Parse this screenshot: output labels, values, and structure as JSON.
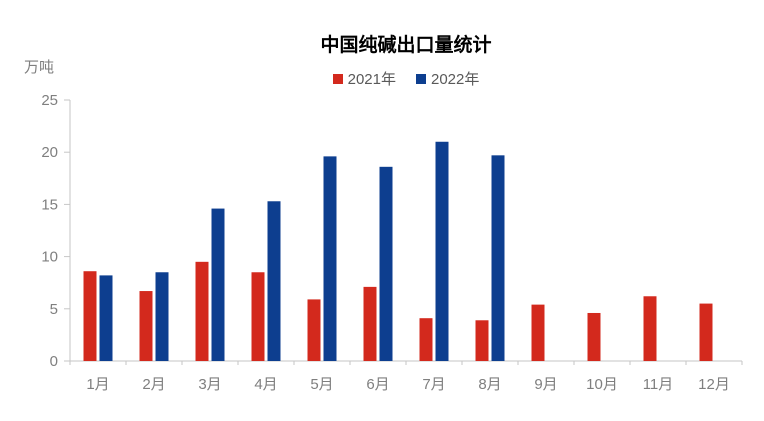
{
  "chart_data": {
    "type": "bar",
    "title": "中国纯碱出口量统计",
    "ylabel": "万吨",
    "xlabel": "",
    "categories": [
      "1月",
      "2月",
      "3月",
      "4月",
      "5月",
      "6月",
      "7月",
      "8月",
      "9月",
      "10月",
      "11月",
      "12月"
    ],
    "series": [
      {
        "name": "2021年",
        "color": "#d3291d",
        "values": [
          8.6,
          6.7,
          9.5,
          8.5,
          5.9,
          7.1,
          4.1,
          3.9,
          5.4,
          4.6,
          6.2,
          5.5
        ]
      },
      {
        "name": "2022年",
        "color": "#0d3e8f",
        "values": [
          8.2,
          8.5,
          14.6,
          15.3,
          19.6,
          18.6,
          21.0,
          19.7,
          null,
          null,
          null,
          null
        ]
      }
    ],
    "ylim": [
      0,
      25
    ],
    "yticks": [
      0,
      5,
      10,
      15,
      20,
      25
    ],
    "grid": false,
    "legend_position": "top-center"
  },
  "colors": {
    "axis_line": "#c6c6c6",
    "tick_text": "#7f7f7f",
    "title_text": "#000000",
    "legend_text": "#595959",
    "background": "#ffffff"
  }
}
